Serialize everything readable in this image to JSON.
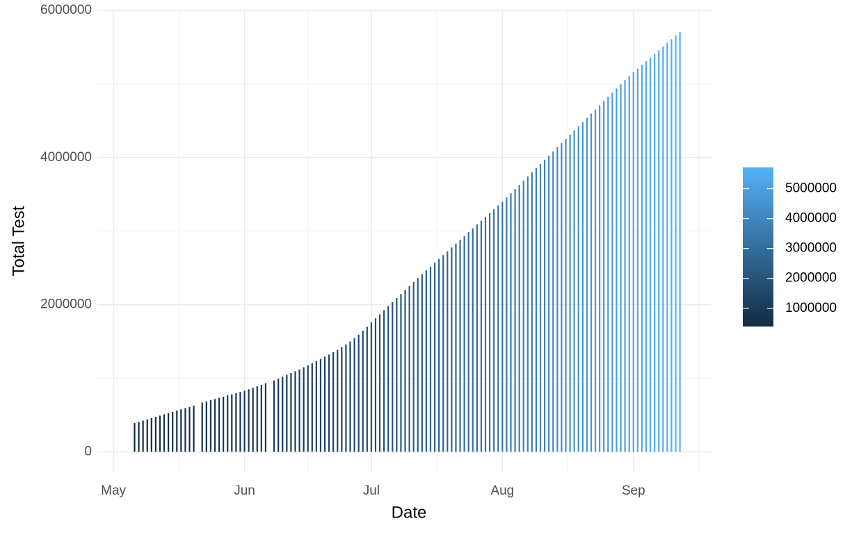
{
  "chart_data": {
    "type": "bar",
    "x_label": "Date",
    "y_label": "Total Test",
    "x": [
      127,
      128,
      129,
      130,
      131,
      132,
      133,
      134,
      135,
      136,
      137,
      138,
      139,
      140,
      141,
      143,
      144,
      145,
      146,
      147,
      148,
      149,
      150,
      151,
      152,
      153,
      154,
      155,
      156,
      157,
      158,
      160,
      161,
      162,
      163,
      164,
      165,
      166,
      167,
      168,
      169,
      170,
      171,
      172,
      173,
      174,
      175,
      176,
      177,
      178,
      179,
      180,
      181,
      182,
      183,
      184,
      185,
      186,
      187,
      188,
      189,
      190,
      191,
      192,
      193,
      194,
      195,
      196,
      197,
      198,
      199,
      200,
      201,
      202,
      203,
      204,
      205,
      206,
      207,
      208,
      209,
      210,
      211,
      212,
      213,
      214,
      215,
      216,
      217,
      218,
      219,
      220,
      221,
      222,
      223,
      224,
      225,
      226,
      227,
      228,
      229,
      230,
      231,
      232,
      233,
      234,
      235,
      236,
      237,
      238,
      239,
      240,
      241,
      242,
      243,
      244,
      245,
      246,
      247,
      248,
      249,
      250,
      251,
      252,
      253,
      254,
      255,
      256
    ],
    "values": [
      390000,
      407000,
      424000,
      441000,
      458000,
      475000,
      492000,
      509000,
      526000,
      543000,
      560000,
      577000,
      594000,
      611000,
      628000,
      670000,
      686000,
      702000,
      718000,
      734000,
      750000,
      766000,
      782000,
      798000,
      814000,
      830000,
      850000,
      870000,
      890000,
      910000,
      930000,
      970000,
      995000,
      1020000,
      1045000,
      1070000,
      1095000,
      1120000,
      1148000,
      1176000,
      1204000,
      1232000,
      1262000,
      1292000,
      1322000,
      1354000,
      1386000,
      1422000,
      1460000,
      1500000,
      1545000,
      1592000,
      1645000,
      1700000,
      1760000,
      1815000,
      1870000,
      1925000,
      1980000,
      2035000,
      2090000,
      2145000,
      2200000,
      2255000,
      2310000,
      2362000,
      2414000,
      2466000,
      2518000,
      2570000,
      2622000,
      2674000,
      2726000,
      2778000,
      2830000,
      2882000,
      2934000,
      2986000,
      3038000,
      3090000,
      3142000,
      3194000,
      3246000,
      3298000,
      3350000,
      3400000,
      3457000,
      3514000,
      3571000,
      3628000,
      3685000,
      3742000,
      3799000,
      3856000,
      3913000,
      3970000,
      4027000,
      4084000,
      4141000,
      4198000,
      4255000,
      4312000,
      4369000,
      4426000,
      4483000,
      4540000,
      4597000,
      4654000,
      4711000,
      4768000,
      4825000,
      4882000,
      4939000,
      4996000,
      5053000,
      5110000,
      5160000,
      5210000,
      5260000,
      5310000,
      5360000,
      5410000,
      5460000,
      5510000,
      5560000,
      5610000,
      5660000,
      5710000
    ],
    "xlim": [
      118.2,
      263.3
    ],
    "xticks": [
      {
        "value": 122,
        "label": "May"
      },
      {
        "value": 153,
        "label": "Jun"
      },
      {
        "value": 183,
        "label": "Jul"
      },
      {
        "value": 214,
        "label": "Aug"
      },
      {
        "value": 245,
        "label": "Sep"
      }
    ],
    "ylim": [
      -280000,
      6000000
    ],
    "yticks": [
      0,
      2000000,
      4000000,
      6000000
    ],
    "grid": true,
    "color_scale": {
      "low": "#132B43",
      "high": "#56B1F7",
      "ticks": [
        1000000,
        2000000,
        3000000,
        4000000,
        5000000
      ]
    }
  }
}
